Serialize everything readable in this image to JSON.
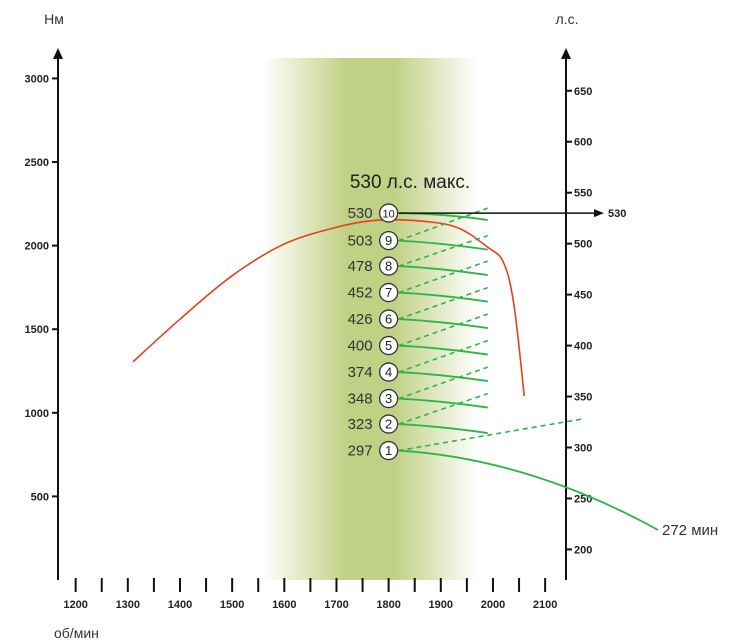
{
  "chart_data": {
    "type": "line",
    "xlabel": "об/мин",
    "ylabel_left": "Нм",
    "ylabel_right": "л.с.",
    "x_ticks": [
      1200,
      1300,
      1400,
      1500,
      1600,
      1700,
      1800,
      1900,
      2000,
      2100
    ],
    "x_tick_labels": [
      "1200",
      "1300",
      "1400",
      "1500",
      "1600",
      "1700",
      "1800",
      "1900",
      "2000",
      "2100"
    ],
    "y_left_ticks": [
      500,
      1000,
      1500,
      2000,
      2500,
      3000
    ],
    "y_left_tick_labels": [
      "500",
      "1000",
      "1500",
      "2000",
      "2500",
      "3000"
    ],
    "y_right_ticks": [
      200,
      250,
      300,
      350,
      400,
      450,
      500,
      550,
      600,
      650
    ],
    "y_right_tick_labels": [
      "200",
      "250",
      "300",
      "350",
      "400",
      "450",
      "500",
      "550",
      "600",
      "650"
    ],
    "xlim": [
      1170,
      2140
    ],
    "y_left_lim": [
      0,
      3170
    ],
    "y_right_lim": [
      170,
      690
    ],
    "max_label": "530 л.с. макс.",
    "arrow_label": "530",
    "torque_end_label": "272 мин",
    "highlight_band": {
      "x_from": 1560,
      "x_to": 1970,
      "core_from": 1720,
      "core_to": 1880,
      "color": "#b5c86e"
    },
    "torque_curve": {
      "color": "#e8401c",
      "points": [
        [
          1310,
          1305
        ],
        [
          1400,
          1560
        ],
        [
          1500,
          1820
        ],
        [
          1600,
          2010
        ],
        [
          1700,
          2110
        ],
        [
          1770,
          2150
        ],
        [
          1850,
          2150
        ],
        [
          1930,
          2110
        ],
        [
          1990,
          1990
        ],
        [
          2020,
          1900
        ],
        [
          2040,
          1650
        ],
        [
          2060,
          1100
        ]
      ]
    },
    "gears": [
      {
        "gear": "1",
        "hp": "297",
        "hp_value": 297,
        "line_to": {
          "x": 2170,
          "hp": 258
        }
      },
      {
        "gear": "2",
        "hp": "323",
        "hp_value": 323,
        "line_to": {
          "x": 1990,
          "hp": 317
        }
      },
      {
        "gear": "3",
        "hp": "348",
        "hp_value": 348,
        "line_to": {
          "x": 1990,
          "hp": 341
        }
      },
      {
        "gear": "4",
        "hp": "374",
        "hp_value": 374,
        "line_to": {
          "x": 1990,
          "hp": 366
        }
      },
      {
        "gear": "5",
        "hp": "400",
        "hp_value": 400,
        "line_to": {
          "x": 1990,
          "hp": 392
        }
      },
      {
        "gear": "6",
        "hp": "426",
        "hp_value": 426,
        "line_to": {
          "x": 1990,
          "hp": 418
        }
      },
      {
        "gear": "7",
        "hp": "452",
        "hp_value": 452,
        "line_to": {
          "x": 1990,
          "hp": 444
        }
      },
      {
        "gear": "8",
        "hp": "478",
        "hp_value": 478,
        "line_to": {
          "x": 1990,
          "hp": 470
        }
      },
      {
        "gear": "9",
        "hp": "503",
        "hp_value": 503,
        "line_to": {
          "x": 1990,
          "hp": 495
        }
      },
      {
        "gear": "10",
        "hp": "530",
        "hp_value": 530,
        "line_to": {
          "x": 1990,
          "hp": 523
        }
      }
    ],
    "gear_marker_x": 1800,
    "gear_line_color": "#2db54a",
    "grid": false
  }
}
